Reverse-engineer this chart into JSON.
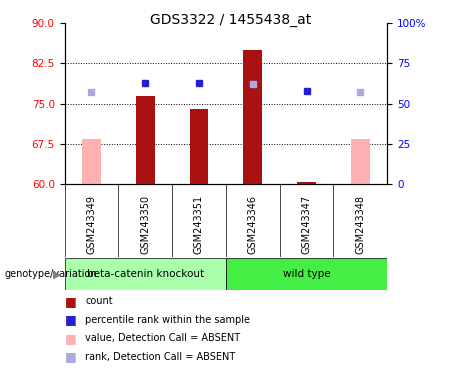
{
  "title": "GDS3322 / 1455438_at",
  "samples": [
    "GSM243349",
    "GSM243350",
    "GSM243351",
    "GSM243346",
    "GSM243347",
    "GSM243348"
  ],
  "ylim_left": [
    60,
    90
  ],
  "ylim_right": [
    0,
    100
  ],
  "yticks_left": [
    60,
    67.5,
    75,
    82.5,
    90
  ],
  "yticks_right": [
    0,
    25,
    50,
    75,
    100
  ],
  "red_bar_values": [
    null,
    76.5,
    74.0,
    85.0,
    60.5,
    null
  ],
  "pink_bar_values": [
    68.5,
    null,
    null,
    null,
    null,
    68.5
  ],
  "blue_sq_values": [
    null,
    63,
    63,
    62,
    58,
    null
  ],
  "light_blue_sq_values": [
    57,
    null,
    null,
    62,
    null,
    57
  ],
  "red_bar_color": "#aa1111",
  "pink_bar_color": "#ffb0b0",
  "blue_sq_color": "#2222cc",
  "light_blue_sq_color": "#aaaadd",
  "plot_bg": "#ffffff",
  "xtick_bg": "#d0d0d0",
  "group1_label": "beta-catenin knockout",
  "group2_label": "wild type",
  "group1_color": "#aaffaa",
  "group2_color": "#44ee44",
  "gridline_values": [
    67.5,
    75,
    82.5
  ],
  "legend_items": [
    {
      "label": "count",
      "color": "#aa1111"
    },
    {
      "label": "percentile rank within the sample",
      "color": "#2222cc"
    },
    {
      "label": "value, Detection Call = ABSENT",
      "color": "#ffb0b0"
    },
    {
      "label": "rank, Detection Call = ABSENT",
      "color": "#aaaadd"
    }
  ]
}
